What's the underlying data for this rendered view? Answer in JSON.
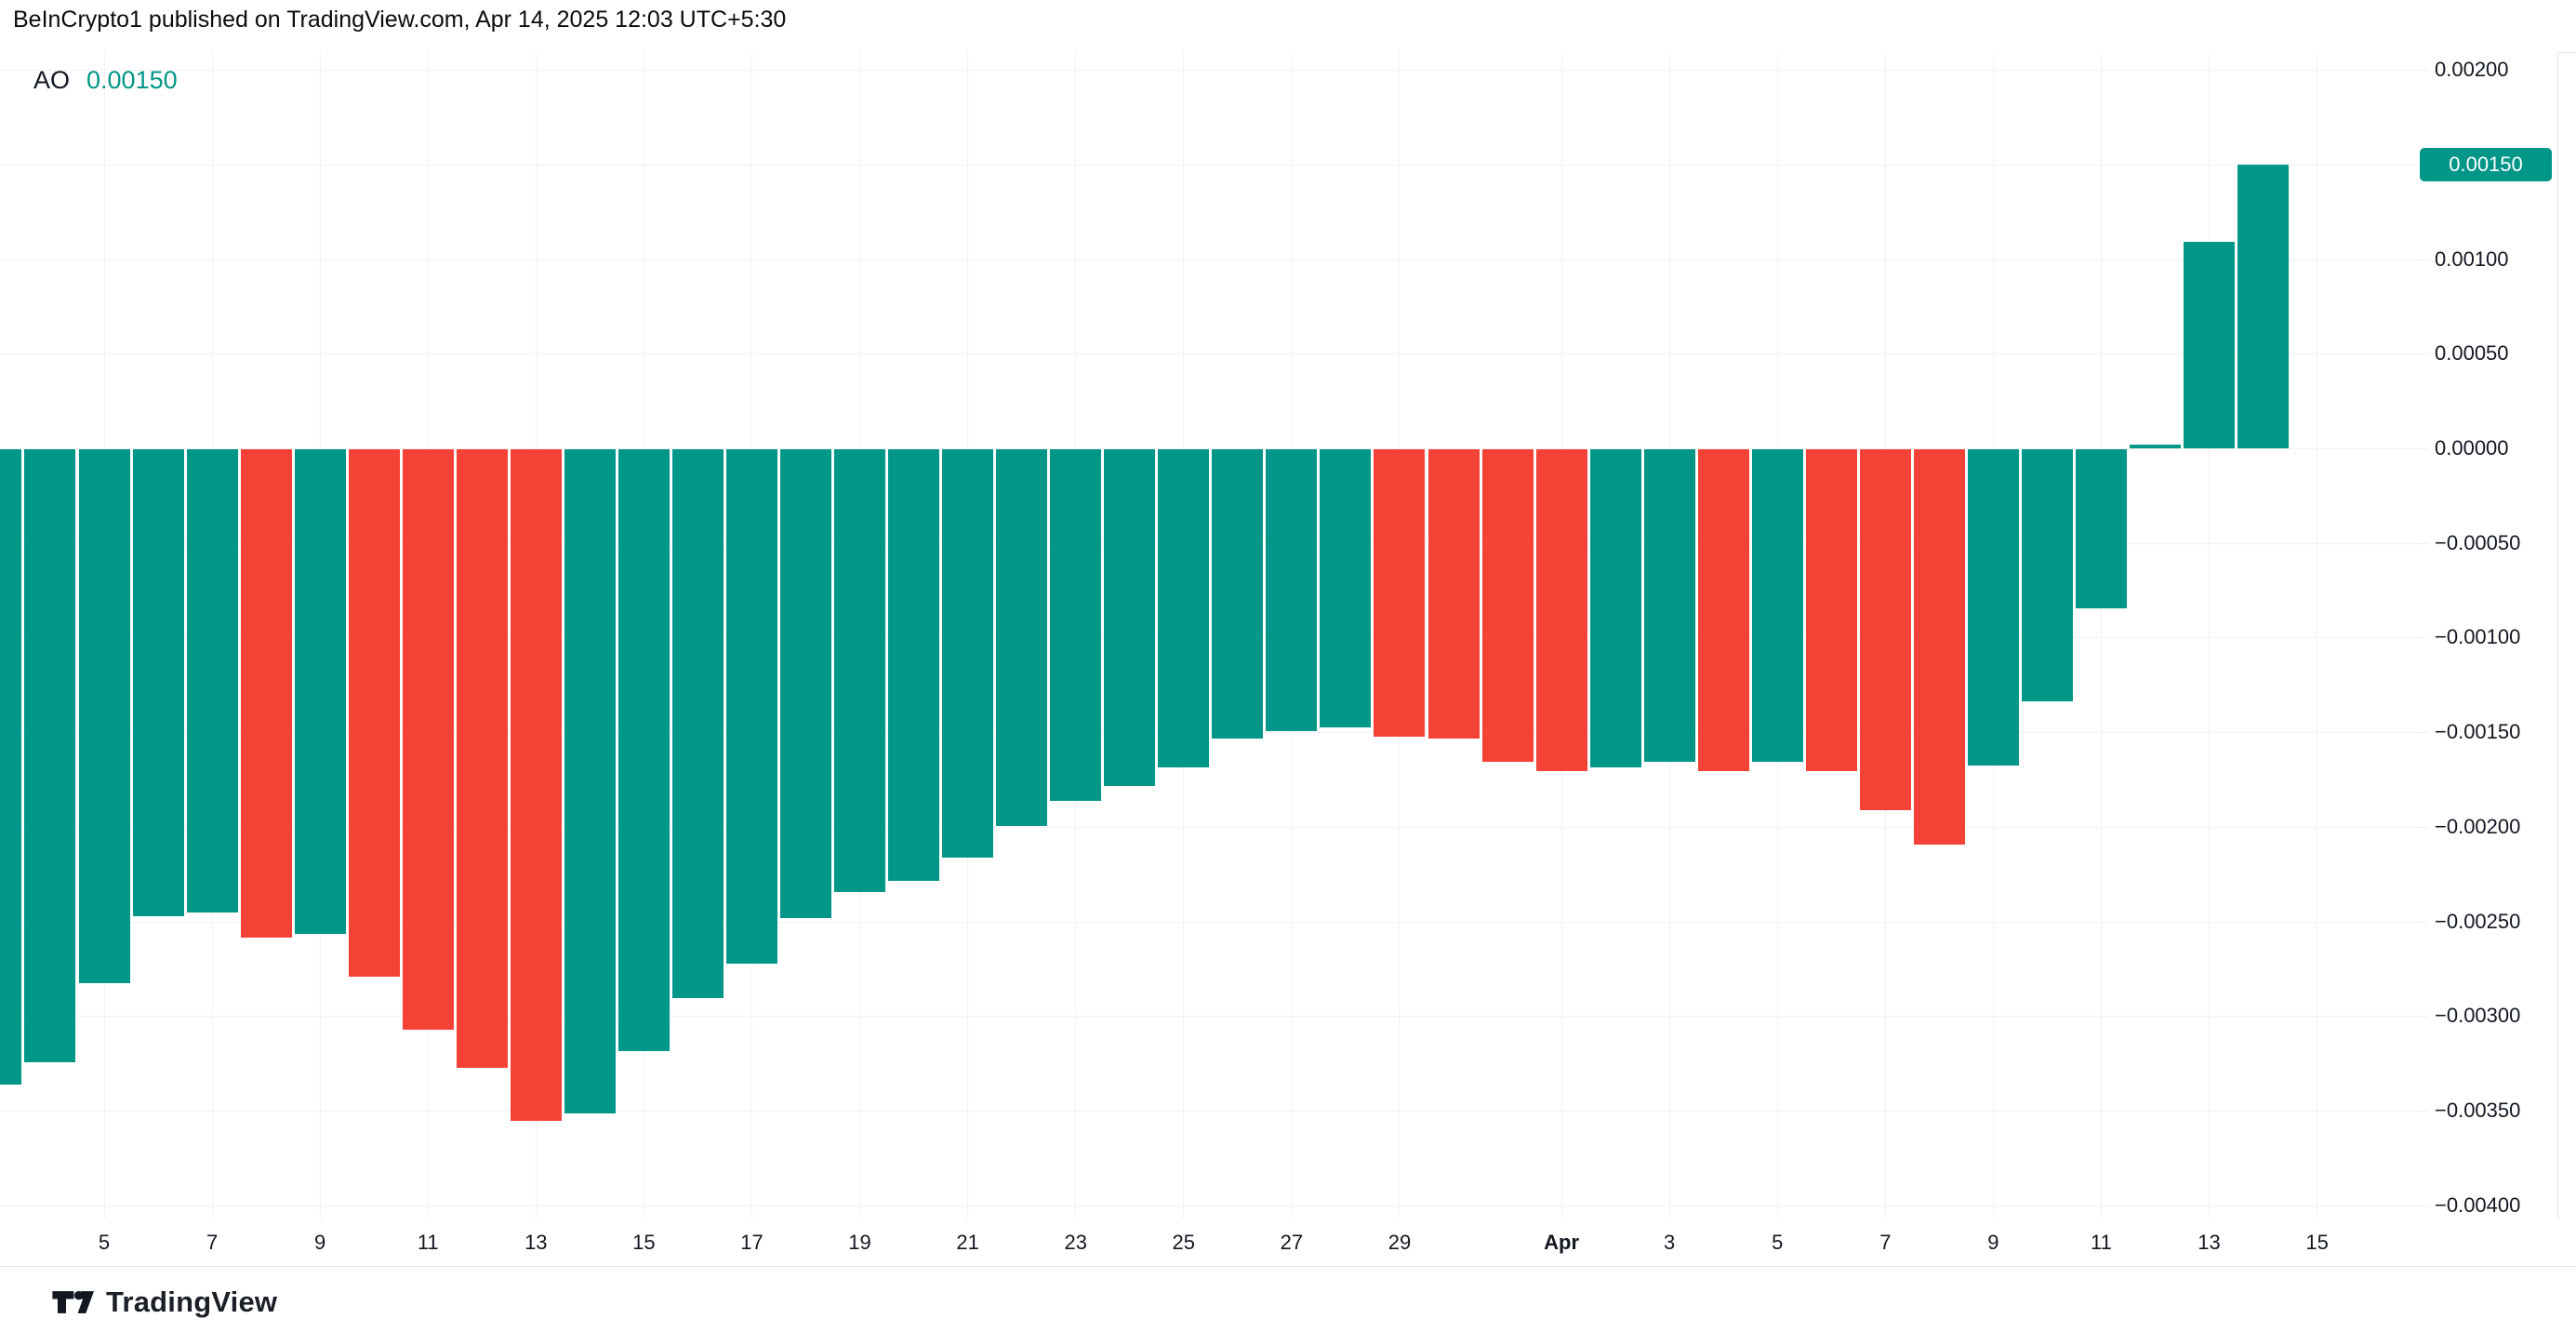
{
  "header": {
    "attribution": "BeInCrypto1 published on TradingView.com, Apr 14, 2025 12:03 UTC+5:30"
  },
  "indicator_legend": {
    "name": "AO",
    "value": "0.00150"
  },
  "price_axis": {
    "labels": [
      {
        "text": "0.00200",
        "value": 0.002
      },
      {
        "text": "0.00150",
        "value": 0.0015
      },
      {
        "text": "0.00100",
        "value": 0.001
      },
      {
        "text": "0.00050",
        "value": 0.0005
      },
      {
        "text": "0.00000",
        "value": 0.0
      },
      {
        "text": "−0.00050",
        "value": -0.0005
      },
      {
        "text": "−0.00100",
        "value": -0.001
      },
      {
        "text": "−0.00150",
        "value": -0.0015
      },
      {
        "text": "−0.00200",
        "value": -0.002
      },
      {
        "text": "−0.00250",
        "value": -0.0025
      },
      {
        "text": "−0.00300",
        "value": -0.003
      },
      {
        "text": "−0.00350",
        "value": -0.0035
      },
      {
        "text": "−0.00400",
        "value": -0.004
      }
    ],
    "last_value_badge": {
      "text": "0.00150",
      "value": 0.0015
    }
  },
  "time_axis": {
    "ticks": [
      {
        "text": "5",
        "index": 2,
        "bold": false
      },
      {
        "text": "7",
        "index": 4,
        "bold": false
      },
      {
        "text": "9",
        "index": 6,
        "bold": false
      },
      {
        "text": "11",
        "index": 8,
        "bold": false
      },
      {
        "text": "13",
        "index": 10,
        "bold": false
      },
      {
        "text": "15",
        "index": 12,
        "bold": false
      },
      {
        "text": "17",
        "index": 14,
        "bold": false
      },
      {
        "text": "19",
        "index": 16,
        "bold": false
      },
      {
        "text": "21",
        "index": 18,
        "bold": false
      },
      {
        "text": "23",
        "index": 20,
        "bold": false
      },
      {
        "text": "25",
        "index": 22,
        "bold": false
      },
      {
        "text": "27",
        "index": 24,
        "bold": false
      },
      {
        "text": "29",
        "index": 26,
        "bold": false
      },
      {
        "text": "Apr",
        "index": 29,
        "bold": true
      },
      {
        "text": "3",
        "index": 31,
        "bold": false
      },
      {
        "text": "5",
        "index": 33,
        "bold": false
      },
      {
        "text": "7",
        "index": 35,
        "bold": false
      },
      {
        "text": "9",
        "index": 37,
        "bold": false
      },
      {
        "text": "11",
        "index": 39,
        "bold": false
      },
      {
        "text": "13",
        "index": 41,
        "bold": false
      },
      {
        "text": "15",
        "index": 43,
        "bold": false
      }
    ]
  },
  "watermark": {
    "brand": "TradingView"
  },
  "colors": {
    "up": "#009688",
    "down": "#f44336",
    "badge": "#009688",
    "value_text": "#009688",
    "grid": "#f0f2f5",
    "border": "#e0e3eb",
    "axis_text": "#131722"
  },
  "chart_data": {
    "type": "bar",
    "title": "AO (Awesome Oscillator) histogram",
    "ylabel": "",
    "xlabel": "",
    "ylim": [
      -0.00407,
      0.0022
    ],
    "grid": true,
    "legend_position": "top-left",
    "categories": [
      "Mar 3",
      "Mar 4",
      "Mar 5",
      "Mar 6",
      "Mar 7",
      "Mar 8",
      "Mar 9",
      "Mar 10",
      "Mar 11",
      "Mar 12",
      "Mar 13",
      "Mar 14",
      "Mar 15",
      "Mar 16",
      "Mar 17",
      "Mar 18",
      "Mar 19",
      "Mar 20",
      "Mar 21",
      "Mar 22",
      "Mar 23",
      "Mar 24",
      "Mar 25",
      "Mar 26",
      "Mar 27",
      "Mar 28",
      "Mar 29",
      "Mar 30",
      "Mar 31",
      "Apr 1",
      "Apr 2",
      "Apr 3",
      "Apr 4",
      "Apr 5",
      "Apr 6",
      "Apr 7",
      "Apr 8",
      "Apr 9",
      "Apr 10",
      "Apr 11",
      "Apr 12",
      "Apr 13",
      "Apr 14"
    ],
    "values": [
      -0.00336,
      -0.00324,
      -0.00282,
      -0.00247,
      -0.00245,
      -0.00258,
      -0.00256,
      -0.00279,
      -0.00307,
      -0.00327,
      -0.00355,
      -0.00351,
      -0.00318,
      -0.0029,
      -0.00272,
      -0.00248,
      -0.00234,
      -0.00228,
      -0.00216,
      -0.00199,
      -0.00186,
      -0.00178,
      -0.00168,
      -0.00153,
      -0.00149,
      -0.00147,
      -0.00152,
      -0.00153,
      -0.00165,
      -0.0017,
      -0.00168,
      -0.00165,
      -0.0017,
      -0.00165,
      -0.0017,
      -0.00191,
      -0.00209,
      -0.00167,
      -0.00133,
      -0.00084,
      2e-05,
      0.00109,
      0.0015
    ],
    "bar_directions": [
      "up",
      "up",
      "up",
      "up",
      "up",
      "down",
      "up",
      "down",
      "down",
      "down",
      "down",
      "up",
      "up",
      "up",
      "up",
      "up",
      "up",
      "up",
      "up",
      "up",
      "up",
      "up",
      "up",
      "up",
      "up",
      "up",
      "down",
      "down",
      "down",
      "down",
      "up",
      "up",
      "down",
      "up",
      "down",
      "down",
      "down",
      "up",
      "up",
      "up",
      "up",
      "up",
      "up"
    ],
    "last_value": 0.0015
  }
}
